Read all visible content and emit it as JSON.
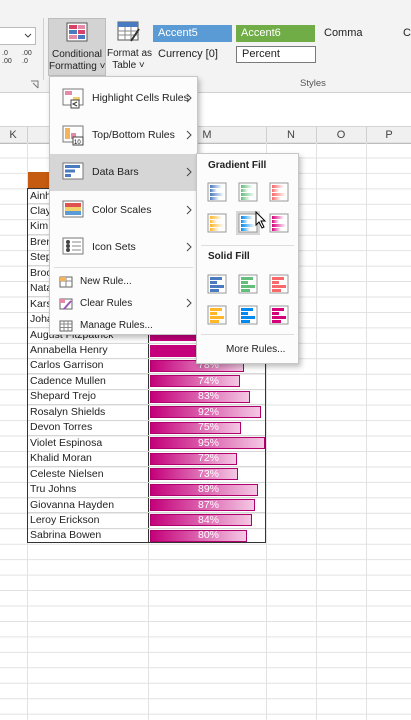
{
  "ribbon": {
    "decimal_icons": [
      [
        ".0",
        ".00"
      ],
      [
        ".00",
        ".0"
      ]
    ],
    "conditional_formatting": [
      "Conditional",
      "Formatting ˅"
    ],
    "format_as_table": [
      "Format as",
      "Table ˅"
    ],
    "style_cells": [
      "Accent5",
      "Accent6",
      "Comma",
      "C",
      "Currency [0]",
      "Percent"
    ],
    "group_label": "Styles"
  },
  "columns": [
    "K",
    "M",
    "N",
    "O",
    "P"
  ],
  "menu": {
    "items": [
      "Highlight Cells Rules",
      "Top/Bottom Rules",
      "Data Bars",
      "Color Scales",
      "Icon Sets"
    ],
    "actions": [
      "New Rule...",
      "Clear Rules",
      "Manage Rules..."
    ]
  },
  "submenu": {
    "gradient_fill": "Gradient Fill",
    "solid_fill": "Solid Fill",
    "more": "More Rules..."
  },
  "table": {
    "rows": [
      {
        "name": "Ainh"
      },
      {
        "name": "Clay"
      },
      {
        "name": "Kim"
      },
      {
        "name": "Bren"
      },
      {
        "name": "Step"
      },
      {
        "name": "Broo"
      },
      {
        "name": "Nata"
      },
      {
        "name": "Kars"
      },
      {
        "name": "Joha"
      },
      {
        "name": "August Fitzpatrick"
      },
      {
        "name": "Annabella Henry"
      },
      {
        "name": "Carlos Garrison",
        "value": 78,
        "label": "78%"
      },
      {
        "name": "Cadence Mullen",
        "value": 74,
        "label": "74%"
      },
      {
        "name": "Shepard Trejo",
        "value": 83,
        "label": "83%"
      },
      {
        "name": "Rosalyn Shields",
        "value": 92,
        "label": "92%"
      },
      {
        "name": "Devon Torres",
        "value": 75,
        "label": "75%"
      },
      {
        "name": "Violet Espinosa",
        "value": 95,
        "label": "95%"
      },
      {
        "name": "Khalid Moran",
        "value": 72,
        "label": "72%"
      },
      {
        "name": "Celeste Nielsen",
        "value": 73,
        "label": "73%"
      },
      {
        "name": "Tru Johns",
        "value": 89,
        "label": "89%"
      },
      {
        "name": "Giovanna Hayden",
        "value": 87,
        "label": "87%"
      },
      {
        "name": "Leroy Erickson",
        "value": 84,
        "label": "84%"
      },
      {
        "name": "Sabrina Bowen",
        "value": 80,
        "label": "80%"
      }
    ]
  }
}
